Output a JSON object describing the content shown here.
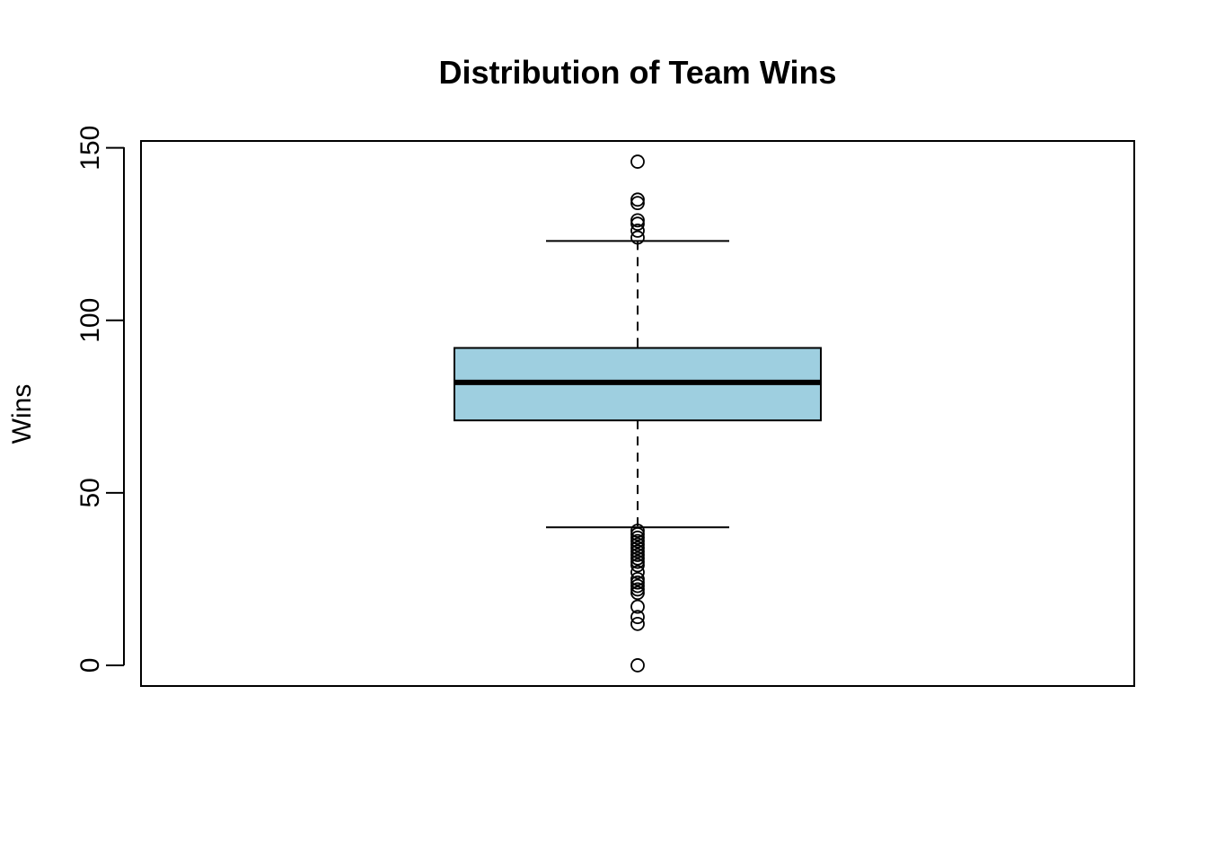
{
  "chart_data": {
    "type": "boxplot",
    "title": "Distribution of Team Wins",
    "xlabel": "",
    "ylabel": "Wins",
    "ylim": [
      -6,
      152
    ],
    "yticks": [
      0,
      50,
      100,
      150
    ],
    "grid": false,
    "box": {
      "whisker_low": 40,
      "q1": 71,
      "median": 82,
      "q3": 92,
      "whisker_high": 123,
      "fill": "#9ecfe0"
    },
    "outliers": [
      0,
      12,
      14,
      17,
      21,
      22,
      23,
      24,
      25,
      27,
      29,
      30,
      31,
      32,
      33,
      34,
      35,
      36,
      37,
      38,
      39,
      124,
      126,
      128,
      129,
      134,
      135,
      146
    ]
  }
}
